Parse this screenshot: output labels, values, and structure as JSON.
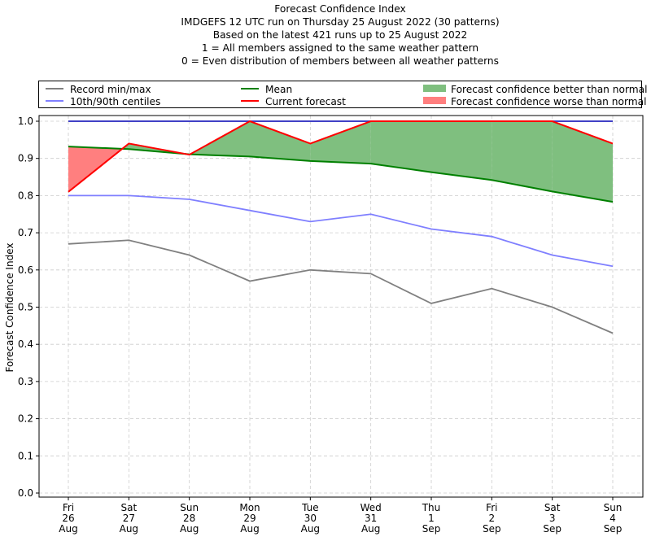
{
  "chart_data": {
    "type": "line",
    "title_lines": [
      "Forecast Confidence Index",
      "IMDGEFS 12 UTC run on Thursday 25 August 2022 (30 patterns)",
      "Based on the latest 421 runs up to 25 August 2022",
      "1 = All members assigned to the same weather pattern",
      "0 = Even distribution of members between all weather patterns"
    ],
    "ylabel": "Forecast Confidence Index",
    "xlabel": "",
    "ylim": [
      0,
      1.0
    ],
    "yticks": [
      "0.0",
      "0.1",
      "0.2",
      "0.3",
      "0.4",
      "0.5",
      "0.6",
      "0.7",
      "0.8",
      "0.9",
      "1.0"
    ],
    "grid": true,
    "legend_placement": "top",
    "categories": [
      [
        "Fri",
        "26",
        "Aug"
      ],
      [
        "Sat",
        "27",
        "Aug"
      ],
      [
        "Sun",
        "28",
        "Aug"
      ],
      [
        "Mon",
        "29",
        "Aug"
      ],
      [
        "Tue",
        "30",
        "Aug"
      ],
      [
        "Wed",
        "31",
        "Aug"
      ],
      [
        "Thu",
        "1",
        "Sep"
      ],
      [
        "Fri",
        "2",
        "Sep"
      ],
      [
        "Sat",
        "3",
        "Sep"
      ],
      [
        "Sun",
        "4",
        "Sep"
      ]
    ],
    "series": [
      {
        "name": "Record min/max",
        "role": "record_max",
        "color": "#808080",
        "values": [
          1.0,
          1.0,
          1.0,
          1.0,
          1.0,
          1.0,
          1.0,
          1.0,
          1.0,
          1.0
        ]
      },
      {
        "name": "Record min/max",
        "role": "record_min",
        "color": "#808080",
        "values": [
          0.67,
          0.68,
          0.64,
          0.57,
          0.6,
          0.59,
          0.51,
          0.55,
          0.5,
          0.43
        ]
      },
      {
        "name": "10th/90th centiles",
        "role": "p90",
        "color": "#0000ff",
        "values": [
          1.0,
          1.0,
          1.0,
          1.0,
          1.0,
          1.0,
          1.0,
          1.0,
          1.0,
          1.0
        ]
      },
      {
        "name": "10th/90th centiles",
        "role": "p10",
        "color": "#7f7fff",
        "values": [
          0.8,
          0.8,
          0.79,
          0.76,
          0.73,
          0.75,
          0.71,
          0.69,
          0.64,
          0.61
        ]
      },
      {
        "name": "Mean",
        "role": "mean",
        "color": "#008000",
        "values": [
          0.932,
          0.925,
          0.911,
          0.905,
          0.893,
          0.886,
          0.863,
          0.842,
          0.811,
          0.783
        ]
      },
      {
        "name": "Current forecast",
        "role": "current",
        "color": "#ff0000",
        "values": [
          0.81,
          0.94,
          0.91,
          1.0,
          0.94,
          1.0,
          1.0,
          1.0,
          1.0,
          0.94
        ]
      }
    ],
    "fills": [
      {
        "name": "Forecast confidence better than normal",
        "color": "#7fbf7f"
      },
      {
        "name": "Forecast confidence worse than normal",
        "color": "#ff7f7f"
      }
    ]
  },
  "legend": {
    "items": [
      {
        "label": "Record min/max",
        "color": "#808080",
        "kind": "line"
      },
      {
        "label": "10th/90th centiles",
        "color": "#7f7fff",
        "kind": "line"
      },
      {
        "label": "Mean",
        "color": "#008000",
        "kind": "line"
      },
      {
        "label": "Current forecast",
        "color": "#ff0000",
        "kind": "line"
      },
      {
        "label": "Forecast confidence better than normal",
        "color": "#7fbf7f",
        "kind": "patch"
      },
      {
        "label": "Forecast confidence worse than normal",
        "color": "#ff7f7f",
        "kind": "patch"
      }
    ]
  }
}
